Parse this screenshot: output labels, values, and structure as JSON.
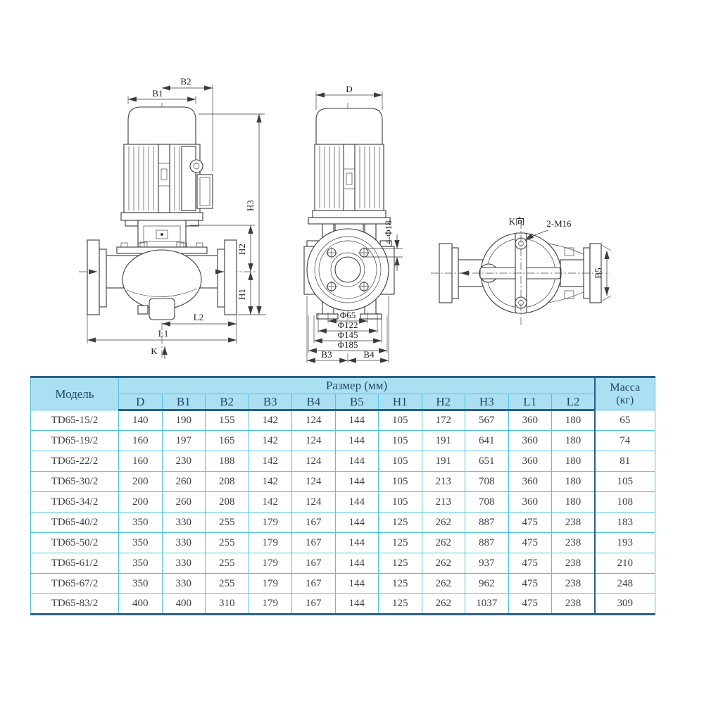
{
  "colors": {
    "table_header_bg": "#abe0f2",
    "grid_line": "#4fc3e0",
    "heavy_line": "#2d5f86",
    "header_text": "#24476b",
    "body_text": "#3f3f3f",
    "drawing_line": "#3a3a3a"
  },
  "drawing": {
    "labels": {
      "b1": "B1",
      "b2": "B2",
      "h1": "H1",
      "h2": "H2",
      "h3": "H3",
      "l1": "L1",
      "l2": "L2",
      "k": "K",
      "d": "D",
      "bolt_holes": "4-Φ18",
      "dia65": "Φ65",
      "dia122": "Φ122",
      "dia145": "Φ145",
      "dia185": "Φ185",
      "b3": "B3",
      "b4": "B4",
      "k_direction": "K向",
      "bolts": "2-M16",
      "b5": "B5"
    }
  },
  "table": {
    "header": {
      "model": "Модель",
      "size_group": "Размер (мм)",
      "mass_line1": "Масса",
      "mass_line2": "(кг)",
      "dims": [
        "D",
        "B1",
        "B2",
        "B3",
        "B4",
        "B5",
        "H1",
        "H2",
        "H3",
        "L1",
        "L2"
      ]
    },
    "rows": [
      {
        "model": "TD65-15/2",
        "values": [
          140,
          190,
          155,
          142,
          124,
          144,
          105,
          172,
          567,
          360,
          180
        ],
        "mass": 65
      },
      {
        "model": "TD65-19/2",
        "values": [
          160,
          197,
          165,
          142,
          124,
          144,
          105,
          191,
          641,
          360,
          180
        ],
        "mass": 74
      },
      {
        "model": "TD65-22/2",
        "values": [
          160,
          230,
          188,
          142,
          124,
          144,
          105,
          191,
          651,
          360,
          180
        ],
        "mass": 81
      },
      {
        "model": "TD65-30/2",
        "values": [
          200,
          260,
          208,
          142,
          124,
          144,
          105,
          213,
          708,
          360,
          180
        ],
        "mass": 105
      },
      {
        "model": "TD65-34/2",
        "values": [
          200,
          260,
          208,
          142,
          124,
          144,
          105,
          213,
          708,
          360,
          180
        ],
        "mass": 108
      },
      {
        "model": "TD65-40/2",
        "values": [
          350,
          330,
          255,
          179,
          167,
          144,
          125,
          262,
          887,
          475,
          238
        ],
        "mass": 183
      },
      {
        "model": "TD65-50/2",
        "values": [
          350,
          330,
          255,
          179,
          167,
          144,
          125,
          262,
          887,
          475,
          238
        ],
        "mass": 193
      },
      {
        "model": "TD65-61/2",
        "values": [
          350,
          330,
          255,
          179,
          167,
          144,
          125,
          262,
          937,
          475,
          238
        ],
        "mass": 210
      },
      {
        "model": "TD65-67/2",
        "values": [
          350,
          330,
          255,
          179,
          167,
          144,
          125,
          262,
          962,
          475,
          238
        ],
        "mass": 248
      },
      {
        "model": "TD65-83/2",
        "values": [
          400,
          400,
          310,
          179,
          167,
          144,
          125,
          262,
          1037,
          475,
          238
        ],
        "mass": 309
      }
    ]
  }
}
